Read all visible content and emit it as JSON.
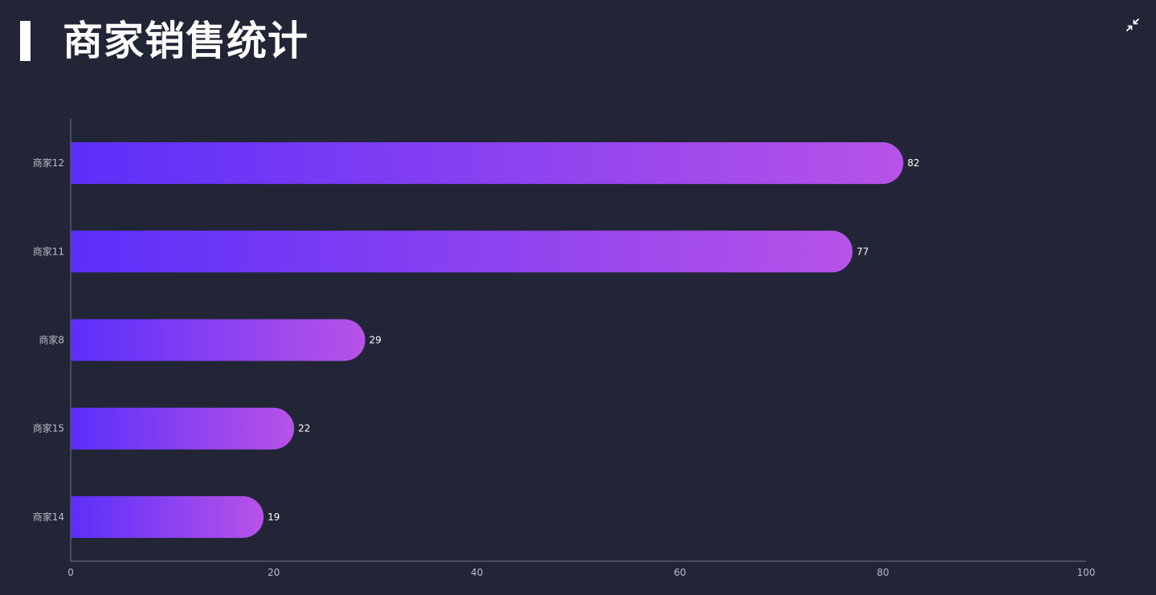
{
  "header": {
    "title": "商家销售统计",
    "compress_icon": "compress-icon"
  },
  "colors": {
    "background": "#222536",
    "bar_start": "#5b2ff9",
    "bar_end": "#b753e8",
    "axis": "#6f7282",
    "text": "#b9bcc8",
    "value_text": "#ffffff"
  },
  "chart_data": {
    "type": "bar",
    "orientation": "horizontal",
    "categories": [
      "商家12",
      "商家11",
      "商家8",
      "商家15",
      "商家14"
    ],
    "values": [
      82,
      77,
      29,
      22,
      19
    ],
    "title": "",
    "xlabel": "",
    "ylabel": "",
    "xlim": [
      0,
      100
    ],
    "x_ticks": [
      "0",
      "20",
      "40",
      "60",
      "80",
      "100"
    ],
    "grid": false,
    "legend": "none",
    "data_labels": true
  }
}
